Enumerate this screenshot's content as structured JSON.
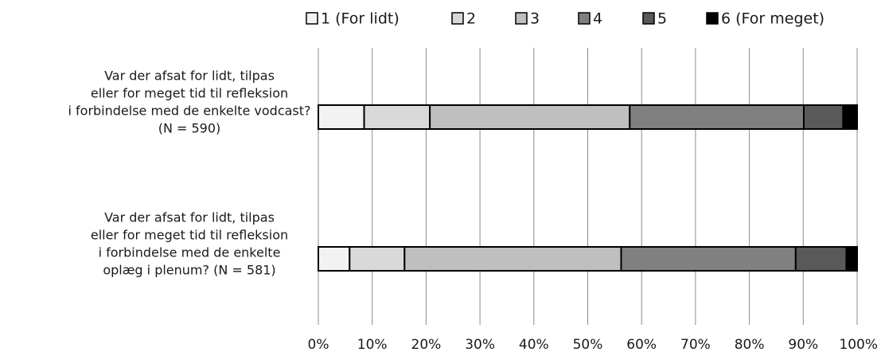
{
  "chart_data": {
    "type": "bar",
    "orientation": "horizontal",
    "stacked": "percent",
    "title": "",
    "xlabel": "",
    "ylabel": "",
    "xlim": [
      0,
      100
    ],
    "x_ticks": [
      "0%",
      "10%",
      "20%",
      "30%",
      "40%",
      "50%",
      "60%",
      "70%",
      "80%",
      "90%",
      "100%"
    ],
    "grid": "vertical",
    "legend_position": "top",
    "categories": [
      {
        "lines": [
          "Var der afsat for lidt, tilpas",
          "eller for meget tid til refleksion",
          "i forbindelse med de enkelte vodcast?",
          "(N = 590)"
        ]
      },
      {
        "lines": [
          "Var der afsat for lidt, tilpas",
          "eller for meget tid til refleksion",
          "i forbindelse med de enkelte",
          "oplæg i plenum? (N = 581)"
        ]
      }
    ],
    "series": [
      {
        "name": "1 (For lidt)",
        "color": "#f2f2f2",
        "values": [
          8.5,
          5.8
        ]
      },
      {
        "name": "2",
        "color": "#d9d9d9",
        "values": [
          12.2,
          10.2
        ]
      },
      {
        "name": "3",
        "color": "#bfbfbf",
        "values": [
          37.1,
          40.2
        ]
      },
      {
        "name": "4",
        "color": "#808080",
        "values": [
          32.3,
          32.4
        ]
      },
      {
        "name": "5",
        "color": "#595959",
        "values": [
          7.3,
          9.4
        ]
      },
      {
        "name": "6 (For meget)",
        "color": "#000000",
        "values": [
          2.6,
          2.0
        ]
      }
    ]
  }
}
